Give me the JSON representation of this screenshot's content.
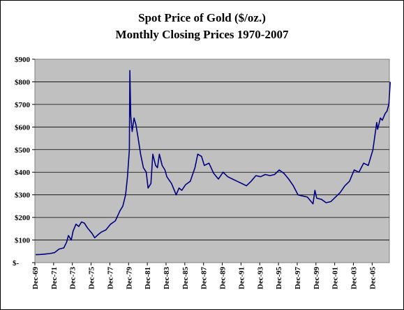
{
  "chart_data": {
    "type": "line",
    "title": "Spot Price of Gold ($/oz.)",
    "subtitle": "Monthly Closing Prices 1970-2007",
    "xlabel": "",
    "ylabel": "",
    "ylim": [
      0,
      900
    ],
    "xlim": [
      "1969-12",
      "2007-10"
    ],
    "grid": "horizontal",
    "plot_background": "#c0c0c0",
    "line_color": "#000080",
    "y_ticks": [
      "$-",
      "$100",
      "$200",
      "$300",
      "$400",
      "$500",
      "$600",
      "$700",
      "$800",
      "$900"
    ],
    "x_ticks": [
      "Dec-69",
      "Dec-71",
      "Dec-73",
      "Dec-75",
      "Dec-77",
      "Dec-79",
      "Dec-81",
      "Dec-83",
      "Dec-85",
      "Dec-87",
      "Dec-89",
      "Dec-91",
      "Dec-93",
      "Dec-95",
      "Dec-97",
      "Dec-99",
      "Dec-01",
      "Dec-03",
      "Dec-05"
    ],
    "series": [
      {
        "name": "",
        "x": [
          1970.0,
          1970.5,
          1971.0,
          1971.5,
          1972.0,
          1972.5,
          1973.0,
          1973.3,
          1973.5,
          1973.8,
          1974.0,
          1974.3,
          1974.6,
          1974.9,
          1975.2,
          1975.5,
          1975.8,
          1976.0,
          1976.3,
          1976.7,
          1977.0,
          1977.5,
          1978.0,
          1978.5,
          1979.0,
          1979.3,
          1979.6,
          1979.8,
          1980.0,
          1980.05,
          1980.15,
          1980.3,
          1980.5,
          1980.7,
          1980.9,
          1981.2,
          1981.5,
          1981.8,
          1982.0,
          1982.3,
          1982.5,
          1982.8,
          1983.0,
          1983.2,
          1983.5,
          1983.8,
          1984.0,
          1984.5,
          1985.0,
          1985.3,
          1985.6,
          1986.0,
          1986.5,
          1987.0,
          1987.3,
          1987.7,
          1988.0,
          1988.5,
          1989.0,
          1989.5,
          1990.0,
          1990.5,
          1991.0,
          1991.5,
          1992.0,
          1992.5,
          1993.0,
          1993.5,
          1994.0,
          1994.5,
          1995.0,
          1995.5,
          1996.0,
          1996.5,
          1997.0,
          1997.5,
          1998.0,
          1998.5,
          1999.0,
          1999.6,
          1999.8,
          2000.0,
          2000.5,
          2001.0,
          2001.5,
          2002.0,
          2002.5,
          2003.0,
          2003.5,
          2004.0,
          2004.5,
          2005.0,
          2005.5,
          2006.0,
          2006.4,
          2006.5,
          2006.8,
          2007.0,
          2007.3,
          2007.5,
          2007.7,
          2007.85
        ],
        "y": [
          35,
          36,
          38,
          40,
          44,
          60,
          65,
          90,
          120,
          100,
          140,
          170,
          160,
          180,
          175,
          155,
          140,
          130,
          110,
          125,
          135,
          145,
          170,
          185,
          230,
          250,
          300,
          380,
          500,
          850,
          650,
          580,
          640,
          610,
          560,
          480,
          420,
          400,
          330,
          350,
          480,
          430,
          420,
          480,
          430,
          410,
          380,
          350,
          300,
          330,
          320,
          345,
          360,
          420,
          480,
          470,
          430,
          440,
          395,
          370,
          400,
          380,
          370,
          360,
          350,
          340,
          360,
          385,
          380,
          390,
          385,
          390,
          410,
          395,
          370,
          340,
          300,
          295,
          290,
          260,
          320,
          285,
          280,
          265,
          270,
          290,
          310,
          340,
          360,
          410,
          400,
          440,
          430,
          500,
          620,
          590,
          640,
          630,
          660,
          670,
          700,
          800
        ]
      }
    ]
  }
}
